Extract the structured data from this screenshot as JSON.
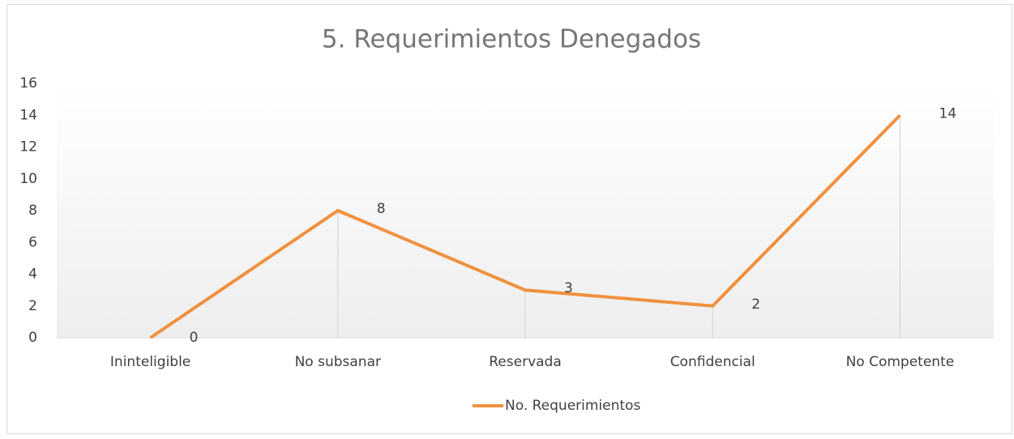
{
  "chart_data": {
    "type": "line",
    "title": "5.  Requerimientos Denegados",
    "categories": [
      "Ininteligible",
      "No subsanar",
      "Reservada",
      "Confidencial",
      "No Competente"
    ],
    "series": [
      {
        "name": "No. Requerimientos",
        "color": "#f0913f",
        "values": [
          0,
          8,
          3,
          2,
          14
        ]
      }
    ],
    "ylim": [
      0,
      16
    ],
    "yticks": [
      0,
      2,
      4,
      6,
      8,
      10,
      12,
      14,
      16
    ],
    "drop_lines": true,
    "legend": "bottom"
  }
}
